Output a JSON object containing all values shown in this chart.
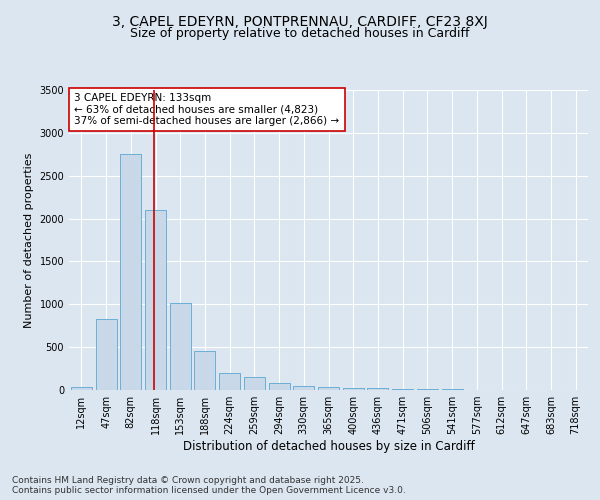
{
  "title1": "3, CAPEL EDEYRN, PONTPRENNAU, CARDIFF, CF23 8XJ",
  "title2": "Size of property relative to detached houses in Cardiff",
  "xlabel": "Distribution of detached houses by size in Cardiff",
  "ylabel": "Number of detached properties",
  "categories": [
    "12sqm",
    "47sqm",
    "82sqm",
    "118sqm",
    "153sqm",
    "188sqm",
    "224sqm",
    "259sqm",
    "294sqm",
    "330sqm",
    "365sqm",
    "400sqm",
    "436sqm",
    "471sqm",
    "506sqm",
    "541sqm",
    "577sqm",
    "612sqm",
    "647sqm",
    "683sqm",
    "718sqm"
  ],
  "values": [
    30,
    830,
    2750,
    2100,
    1020,
    460,
    200,
    150,
    80,
    45,
    30,
    25,
    20,
    15,
    10,
    8,
    5,
    4,
    3,
    2,
    1
  ],
  "bar_color": "#c8d8e8",
  "bar_edge_color": "#6baed6",
  "vline_color": "#cc0000",
  "annotation_text": "3 CAPEL EDEYRN: 133sqm\n← 63% of detached houses are smaller (4,823)\n37% of semi-detached houses are larger (2,866) →",
  "annotation_box_color": "#ffffff",
  "annotation_box_edge_color": "#cc0000",
  "ylim": [
    0,
    3500
  ],
  "yticks": [
    0,
    500,
    1000,
    1500,
    2000,
    2500,
    3000,
    3500
  ],
  "background_color": "#dce6f0",
  "plot_background_color": "#dce6f0",
  "footer_text": "Contains HM Land Registry data © Crown copyright and database right 2025.\nContains public sector information licensed under the Open Government Licence v3.0.",
  "title_fontsize": 10,
  "subtitle_fontsize": 9,
  "annotation_fontsize": 7.5,
  "footer_fontsize": 6.5,
  "tick_fontsize": 7,
  "ylabel_fontsize": 8,
  "xlabel_fontsize": 8.5
}
